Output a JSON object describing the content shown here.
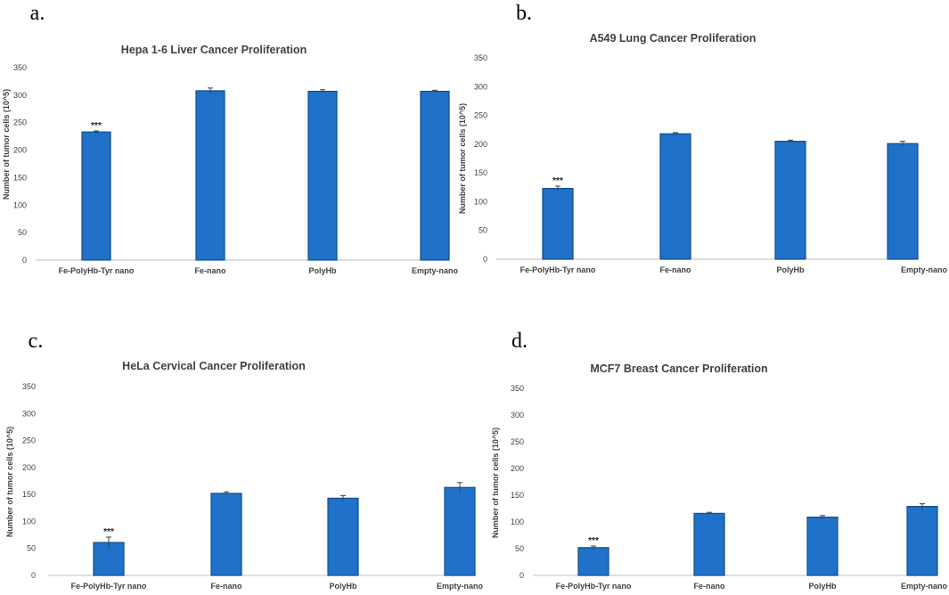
{
  "colors": {
    "bar": "#1f71c9"
  },
  "chart_data": [
    {
      "type": "bar",
      "panel": "a.",
      "title": "Hepa 1-6 Liver Cancer Proliferation",
      "ylabel": "Number of tumor cells (10^5)",
      "xlabel": "",
      "ylim": [
        0,
        350
      ],
      "yticks": [
        0,
        50,
        100,
        150,
        200,
        250,
        300,
        350
      ],
      "categories": [
        "Fe-PolyHb-Tyr nano",
        "Fe-nano",
        "PolyHb",
        "Empty-nano"
      ],
      "values": [
        233,
        308,
        307,
        307
      ],
      "errors": [
        2,
        5,
        3,
        2
      ],
      "annotations": [
        {
          "category": "Fe-PolyHb-Tyr nano",
          "text": "***"
        }
      ]
    },
    {
      "type": "bar",
      "panel": "b.",
      "title": "A549 Lung Cancer Proliferation",
      "ylabel": "Number of tumor cells (10^5)",
      "xlabel": "",
      "ylim": [
        0,
        350
      ],
      "yticks": [
        0,
        50,
        100,
        150,
        200,
        250,
        300,
        350
      ],
      "categories": [
        "Fe-PolyHb-Tyr nano",
        "Fe-nano",
        "PolyHb",
        "Empty-nano"
      ],
      "values": [
        123,
        218,
        205,
        201
      ],
      "errors": [
        4,
        2,
        2,
        4
      ],
      "annotations": [
        {
          "category": "Fe-PolyHb-Tyr nano",
          "text": "***"
        }
      ]
    },
    {
      "type": "bar",
      "panel": "c.",
      "title": "HeLa Cervical Cancer Proliferation",
      "ylabel": "Number of tumor cells (10^5)",
      "xlabel": "",
      "ylim": [
        0,
        350
      ],
      "yticks": [
        0,
        50,
        100,
        150,
        200,
        250,
        300,
        350
      ],
      "categories": [
        "Fe-PolyHb-Tyr nano",
        "Fe-nano",
        "PolyHb",
        "Empty-nano"
      ],
      "values": [
        61,
        152,
        143,
        163
      ],
      "errors": [
        10,
        3,
        5,
        9
      ],
      "annotations": [
        {
          "category": "Fe-PolyHb-Tyr nano",
          "text": "***"
        }
      ]
    },
    {
      "type": "bar",
      "panel": "d.",
      "title": "MCF7 Breast Cancer Proliferation",
      "ylabel": "Number of tumor cells (10^5)",
      "xlabel": "",
      "ylim": [
        0,
        350
      ],
      "yticks": [
        0,
        50,
        100,
        150,
        200,
        250,
        300,
        350
      ],
      "categories": [
        "Fe-PolyHb-Tyr nano",
        "Fe-nano",
        "PolyHb",
        "Empty-nano"
      ],
      "values": [
        52,
        116,
        109,
        129
      ],
      "errors": [
        3,
        2,
        3,
        5
      ],
      "annotations": [
        {
          "category": "Fe-PolyHb-Tyr nano",
          "text": "***"
        }
      ]
    }
  ]
}
